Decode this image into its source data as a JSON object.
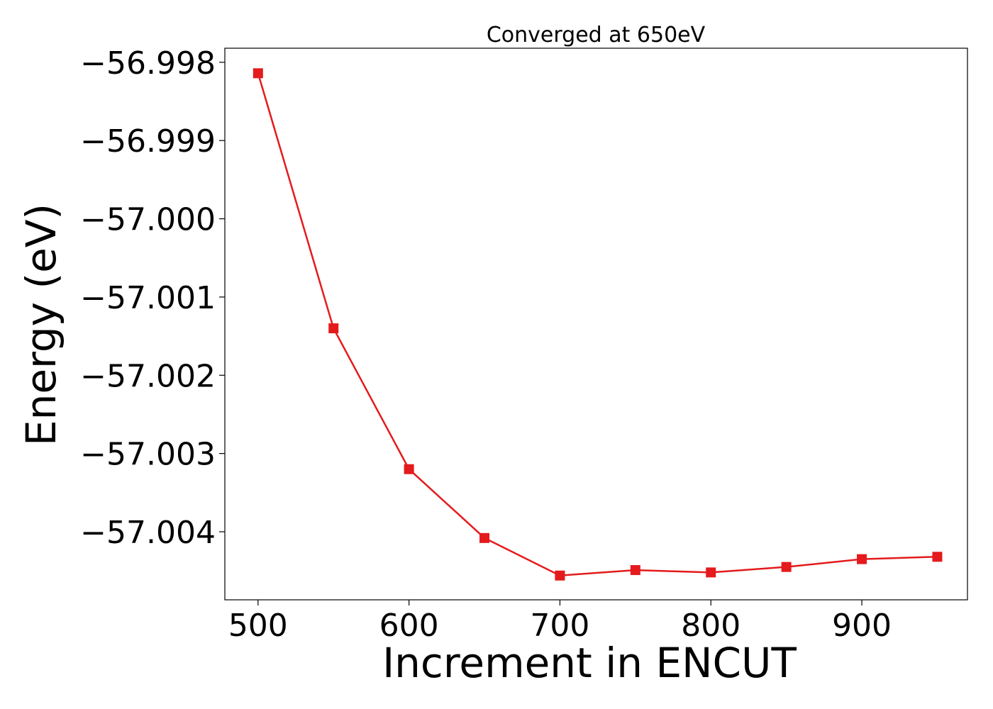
{
  "chart_data": {
    "type": "line",
    "title": "Converged at 650eV",
    "xlabel": "Increment in ENCUT",
    "ylabel": "Energy (eV)",
    "xlim": [
      478,
      970
    ],
    "ylim": [
      -57.00487,
      -56.99782
    ],
    "x_ticks": [
      500,
      600,
      700,
      800,
      900
    ],
    "x_tick_labels": [
      "500",
      "600",
      "700",
      "800",
      "900"
    ],
    "y_ticks": [
      -56.998,
      -56.999,
      -57.0,
      -57.001,
      -57.002,
      -57.003,
      -57.004
    ],
    "y_tick_labels": [
      "−56.998",
      "−56.999",
      "−57.000",
      "−57.001",
      "−57.002",
      "−57.003",
      "−57.004"
    ],
    "grid": false,
    "color": "#e41a1c",
    "marker": "square",
    "series": [
      {
        "x": [
          500,
          550,
          600,
          650,
          700,
          750,
          800,
          850,
          900,
          950
        ],
        "y": [
          -56.99814,
          -57.0014,
          -57.0032,
          -57.00408,
          -57.00456,
          -57.00449,
          -57.00452,
          -57.00445,
          -57.00435,
          -57.00432
        ]
      }
    ]
  }
}
